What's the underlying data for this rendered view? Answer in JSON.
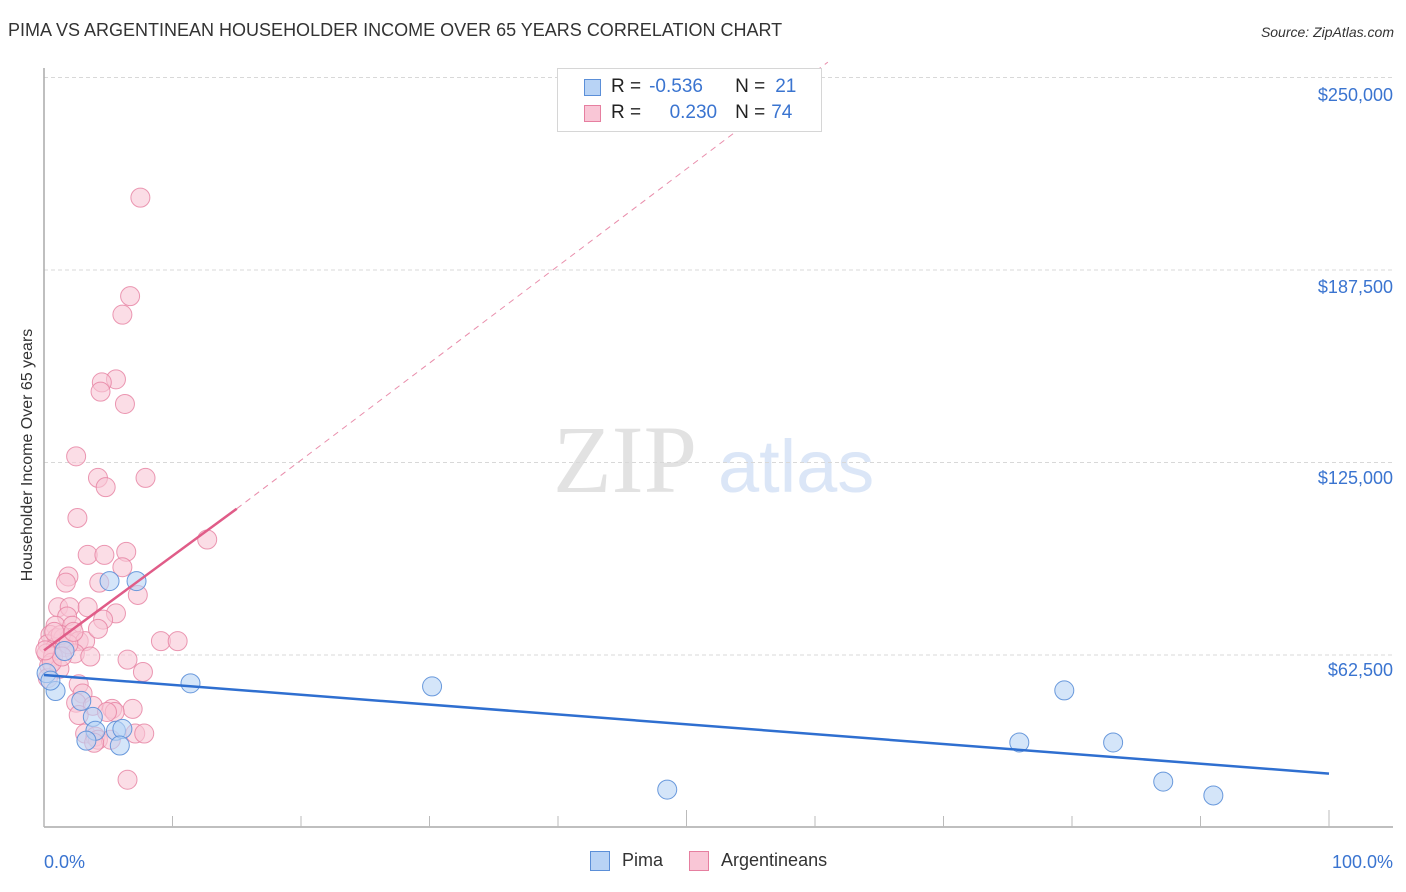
{
  "header": {
    "title": "PIMA VS ARGENTINEAN HOUSEHOLDER INCOME OVER 65 YEARS CORRELATION CHART",
    "source": "Source: ZipAtlas.com"
  },
  "watermark": {
    "zip": "ZIP",
    "atlas": "atlas"
  },
  "colors": {
    "pima_fill": "#b8d3f5",
    "pima_stroke": "#5b8fd8",
    "pima_line": "#2f6fd0",
    "arg_fill": "#f9c6d6",
    "arg_stroke": "#e67fa0",
    "arg_line": "#e05c88",
    "axis_label": "#3a74d0",
    "grid": "#d8d8d8"
  },
  "legend_stats": {
    "rows": [
      {
        "series": "Pima",
        "r_label": "R =",
        "r_value": "-0.536",
        "n_label": "N =",
        "n_value": "21"
      },
      {
        "series": "Argentineans",
        "r_label": "R =",
        "r_value": "0.230",
        "n_label": "N =",
        "n_value": "74"
      }
    ]
  },
  "axes": {
    "ylabel": "Householder Income Over 65 years",
    "yticks": [
      "$250,000",
      "$187,500",
      "$125,000",
      "$62,500"
    ],
    "xtick_left": "0.0%",
    "xtick_right": "100.0%"
  },
  "bottom_legend": {
    "items": [
      {
        "label": "Pima"
      },
      {
        "label": "Argentineans"
      }
    ]
  },
  "chart_data": {
    "type": "scatter",
    "title": "PIMA VS ARGENTINEAN HOUSEHOLDER INCOME OVER 65 YEARS CORRELATION CHART",
    "xlabel": "",
    "ylabel": "Householder Income Over 65 years",
    "xlim": [
      0,
      100
    ],
    "ylim": [
      7000,
      255000
    ],
    "x_tick_labels": [
      "0.0%",
      "100.0%"
    ],
    "y_tick_values": [
      62500,
      125000,
      187500,
      250000
    ],
    "grid": true,
    "legend_position": "bottom-center",
    "series": [
      {
        "name": "Pima",
        "r": -0.536,
        "n": 21,
        "points": [
          [
            0.2,
            56600
          ],
          [
            0.9,
            50800
          ],
          [
            1.6,
            63800
          ],
          [
            2.9,
            47600
          ],
          [
            3.8,
            42400
          ],
          [
            4.0,
            37900
          ],
          [
            5.6,
            37900
          ],
          [
            6.1,
            38500
          ],
          [
            7.2,
            86500
          ],
          [
            5.1,
            86500
          ],
          [
            11.4,
            53300
          ],
          [
            30.2,
            52300
          ],
          [
            48.5,
            18800
          ],
          [
            75.9,
            34100
          ],
          [
            79.4,
            51000
          ],
          [
            83.2,
            34100
          ],
          [
            87.1,
            21400
          ],
          [
            91.0,
            16900
          ],
          [
            0.5,
            54200
          ],
          [
            3.3,
            34700
          ],
          [
            5.9,
            33100
          ]
        ],
        "trendline": {
          "x": [
            0,
            100
          ],
          "y": [
            56000,
            24000
          ]
        }
      },
      {
        "name": "Argentineans",
        "r": 0.23,
        "n": 74,
        "points": [
          [
            7.5,
            211000
          ],
          [
            6.7,
            179000
          ],
          [
            6.1,
            173000
          ],
          [
            5.6,
            152000
          ],
          [
            4.5,
            151000
          ],
          [
            4.4,
            148000
          ],
          [
            6.3,
            144000
          ],
          [
            2.5,
            127000
          ],
          [
            4.2,
            120000
          ],
          [
            7.9,
            120000
          ],
          [
            4.8,
            117000
          ],
          [
            2.6,
            107000
          ],
          [
            3.4,
            95000
          ],
          [
            4.7,
            95000
          ],
          [
            6.4,
            96000
          ],
          [
            12.7,
            100000
          ],
          [
            1.9,
            88000
          ],
          [
            1.7,
            86000
          ],
          [
            4.3,
            86000
          ],
          [
            6.1,
            91000
          ],
          [
            7.3,
            82000
          ],
          [
            1.1,
            78000
          ],
          [
            2.0,
            78000
          ],
          [
            3.4,
            78000
          ],
          [
            5.6,
            76000
          ],
          [
            1.8,
            75000
          ],
          [
            4.6,
            74000
          ],
          [
            0.9,
            72000
          ],
          [
            2.2,
            72000
          ],
          [
            0.5,
            69000
          ],
          [
            1.0,
            68000
          ],
          [
            1.5,
            68000
          ],
          [
            2.0,
            68000
          ],
          [
            2.7,
            67000
          ],
          [
            3.2,
            67000
          ],
          [
            4.2,
            71000
          ],
          [
            0.3,
            66000
          ],
          [
            0.9,
            65000
          ],
          [
            1.6,
            65000
          ],
          [
            0.2,
            63000
          ],
          [
            0.7,
            62000
          ],
          [
            2.4,
            63000
          ],
          [
            0.4,
            59000
          ],
          [
            1.2,
            58000
          ],
          [
            9.1,
            67000
          ],
          [
            10.4,
            67000
          ],
          [
            6.5,
            61000
          ],
          [
            7.7,
            57000
          ],
          [
            0.3,
            55000
          ],
          [
            2.7,
            53000
          ],
          [
            3.0,
            50000
          ],
          [
            2.5,
            47000
          ],
          [
            3.8,
            46000
          ],
          [
            5.3,
            45000
          ],
          [
            6.9,
            45000
          ],
          [
            5.5,
            44000
          ],
          [
            4.9,
            44000
          ],
          [
            2.7,
            43000
          ],
          [
            3.2,
            37000
          ],
          [
            4.0,
            36000
          ],
          [
            4.2,
            35000
          ],
          [
            5.2,
            35000
          ],
          [
            7.1,
            37000
          ],
          [
            7.8,
            37000
          ],
          [
            3.9,
            34000
          ],
          [
            6.5,
            22000
          ],
          [
            0.6,
            60000
          ],
          [
            1.3,
            69000
          ],
          [
            1.9,
            66000
          ],
          [
            0.8,
            70000
          ],
          [
            1.4,
            62000
          ],
          [
            2.3,
            70000
          ],
          [
            3.6,
            62000
          ],
          [
            0.1,
            64000
          ]
        ],
        "trendline": {
          "x": [
            0,
            15
          ],
          "y": [
            64000,
            110000
          ],
          "extended_dashed_to": [
            61,
            255000
          ]
        }
      }
    ]
  }
}
